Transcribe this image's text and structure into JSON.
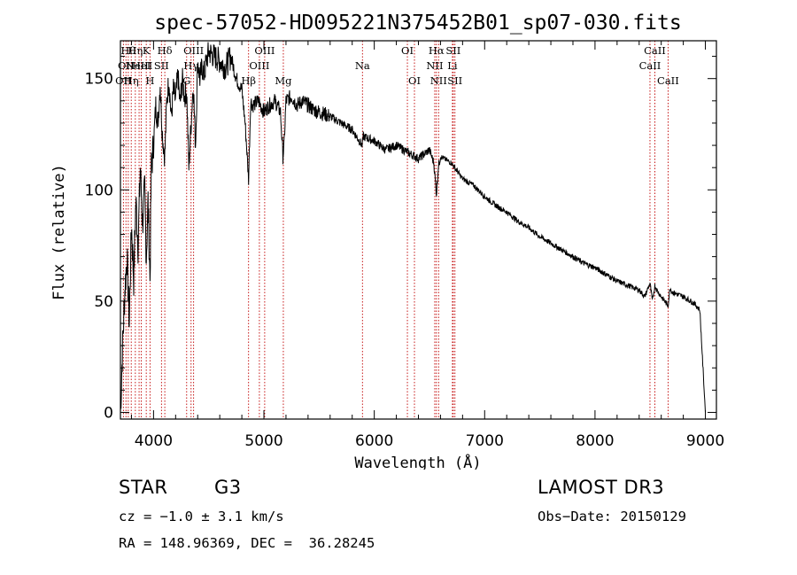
{
  "chart_data": {
    "type": "line",
    "title": "spec-57052-HD095221N375452B01_sp07-030.fits",
    "xlabel": "Wavelength (Å)",
    "ylabel": "Flux (relative)",
    "xlim": [
      3700,
      9100
    ],
    "ylim": [
      -3,
      167
    ],
    "x_ticks": [
      4000,
      5000,
      6000,
      7000,
      8000,
      9000
    ],
    "y_ticks": [
      0,
      50,
      100,
      150
    ],
    "series": [
      {
        "name": "flux",
        "x": [
          3700,
          3720,
          3740,
          3760,
          3780,
          3800,
          3820,
          3840,
          3860,
          3880,
          3900,
          3920,
          3934,
          3950,
          3968,
          3980,
          4000,
          4020,
          4040,
          4060,
          4080,
          4102,
          4120,
          4140,
          4160,
          4180,
          4200,
          4220,
          4240,
          4260,
          4280,
          4300,
          4320,
          4340,
          4360,
          4380,
          4400,
          4420,
          4440,
          4460,
          4480,
          4500,
          4550,
          4600,
          4650,
          4700,
          4750,
          4800,
          4830,
          4861,
          4880,
          4900,
          4950,
          5000,
          5050,
          5100,
          5150,
          5172,
          5183,
          5200,
          5250,
          5300,
          5350,
          5400,
          5450,
          5500,
          5600,
          5700,
          5800,
          5890,
          5900,
          6000,
          6100,
          6200,
          6300,
          6400,
          6500,
          6540,
          6563,
          6580,
          6600,
          6700,
          6800,
          6900,
          7000,
          7100,
          7200,
          7300,
          7400,
          7500,
          7600,
          7700,
          7800,
          7900,
          8000,
          8100,
          8200,
          8300,
          8400,
          8450,
          8498,
          8520,
          8542,
          8560,
          8600,
          8662,
          8680,
          8700,
          8800,
          8900,
          8950,
          9000
        ],
        "values": [
          0,
          30,
          55,
          70,
          40,
          85,
          60,
          95,
          75,
          110,
          85,
          100,
          70,
          95,
          60,
          110,
          120,
          138,
          130,
          148,
          125,
          115,
          140,
          150,
          132,
          145,
          140,
          152,
          138,
          150,
          142,
          145,
          110,
          130,
          148,
          120,
          158,
          150,
          155,
          152,
          158,
          162,
          160,
          158,
          155,
          160,
          150,
          145,
          130,
          105,
          140,
          138,
          140,
          135,
          138,
          140,
          135,
          115,
          120,
          140,
          142,
          138,
          140,
          138,
          136,
          135,
          133,
          130,
          127,
          120,
          124,
          122,
          118,
          120,
          117,
          114,
          118,
          112,
          98,
          110,
          115,
          112,
          105,
          102,
          97,
          93,
          90,
          86,
          83,
          79,
          76,
          73,
          70,
          67,
          65,
          62,
          59,
          57,
          55,
          52,
          58,
          50,
          57,
          55,
          52,
          48,
          56,
          54,
          52,
          49,
          46,
          0
        ]
      }
    ],
    "line_markers": [
      {
        "wl": 3727,
        "label": "OII",
        "row": 2
      },
      {
        "wl": 3750,
        "label": "OII",
        "row": 1
      },
      {
        "wl": 3771,
        "label": "Hθ",
        "row": 0
      },
      {
        "wl": 3798,
        "label": "Hη",
        "row": 2
      },
      {
        "wl": 3835,
        "label": "Hη",
        "row": 0
      },
      {
        "wl": 3869,
        "label": "NeIII",
        "row": 1
      },
      {
        "wl": 3889,
        "label": "HeI",
        "row": 1
      },
      {
        "wl": 3934,
        "label": "K",
        "row": 0
      },
      {
        "wl": 3968,
        "label": "H",
        "row": 2
      },
      {
        "wl": 4072,
        "label": "SII",
        "row": 1
      },
      {
        "wl": 4102,
        "label": "Hδ",
        "row": 0
      },
      {
        "wl": 4300,
        "label": "G",
        "row": 2
      },
      {
        "wl": 4340,
        "label": "Hγ",
        "row": 1
      },
      {
        "wl": 4363,
        "label": "OIII",
        "row": 0
      },
      {
        "wl": 4861,
        "label": "Hβ",
        "row": 2
      },
      {
        "wl": 4959,
        "label": "OIII",
        "row": 1
      },
      {
        "wl": 5007,
        "label": "OIII",
        "row": 0
      },
      {
        "wl": 5176,
        "label": "Mg",
        "row": 2
      },
      {
        "wl": 5893,
        "label": "Na",
        "row": 1
      },
      {
        "wl": 6300,
        "label": "OI",
        "row": 0
      },
      {
        "wl": 6364,
        "label": "OI",
        "row": 2
      },
      {
        "wl": 6548,
        "label": "NII",
        "row": 1
      },
      {
        "wl": 6563,
        "label": "Hα",
        "row": 0
      },
      {
        "wl": 6583,
        "label": "NII",
        "row": 2
      },
      {
        "wl": 6708,
        "label": "Li",
        "row": 1
      },
      {
        "wl": 6716,
        "label": "SII",
        "row": 0
      },
      {
        "wl": 6731,
        "label": "SII",
        "row": 2
      },
      {
        "wl": 8498,
        "label": "CaII",
        "row": 1
      },
      {
        "wl": 8542,
        "label": "CaII",
        "row": 0
      },
      {
        "wl": 8662,
        "label": "CaII",
        "row": 2
      }
    ]
  },
  "info": {
    "object_class": "STAR",
    "subclass": "G3",
    "survey": "LAMOST DR3",
    "redshift": "cz = −1.0 ± 3.1 km/s",
    "obs_date": "Obs−Date: 20150129",
    "coords": "RA = 148.96369, DEC =  36.28245"
  },
  "colors": {
    "spectrum": "#000000",
    "marker_line": "#c00000"
  }
}
